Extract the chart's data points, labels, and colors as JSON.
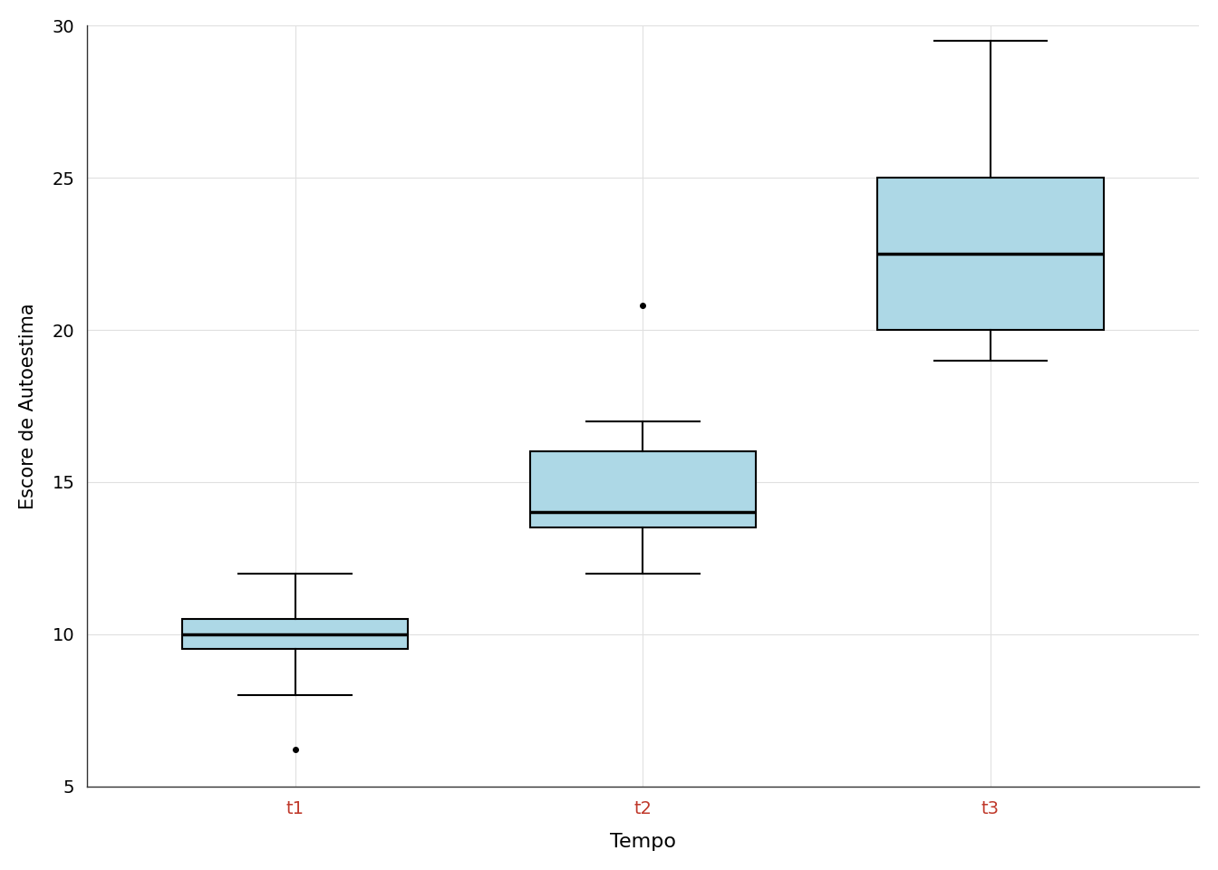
{
  "categories": [
    "t1",
    "t2",
    "t3"
  ],
  "box_stats": [
    {
      "label": "t1",
      "q1": 9.5,
      "median": 10.0,
      "q3": 10.5,
      "whisker_low": 8.0,
      "whisker_high": 12.0,
      "outliers": [
        6.2
      ]
    },
    {
      "label": "t2",
      "q1": 13.5,
      "median": 14.0,
      "q3": 16.0,
      "whisker_low": 12.0,
      "whisker_high": 17.0,
      "outliers": [
        20.8
      ]
    },
    {
      "label": "t3",
      "q1": 20.0,
      "median": 22.5,
      "q3": 25.0,
      "whisker_low": 19.0,
      "whisker_high": 29.5,
      "outliers": []
    }
  ],
  "box_color": "#add8e6",
  "box_edgecolor": "#000000",
  "median_color": "#000000",
  "whisker_color": "#000000",
  "outlier_color": "#000000",
  "background_color": "#ffffff",
  "grid_color": "#e0e0e0",
  "xlabel": "Tempo",
  "ylabel": "Escore de Autoestima",
  "xlabel_color": "#000000",
  "ylabel_color": "#000000",
  "tick_label_color": "#c0392b",
  "ylim": [
    5,
    30
  ],
  "yticks": [
    5,
    10,
    15,
    20,
    25,
    30
  ],
  "box_width": 0.65,
  "linewidth": 1.8,
  "xlabel_fontsize": 16,
  "ylabel_fontsize": 15,
  "tick_fontsize": 14,
  "spine_color": "#333333"
}
